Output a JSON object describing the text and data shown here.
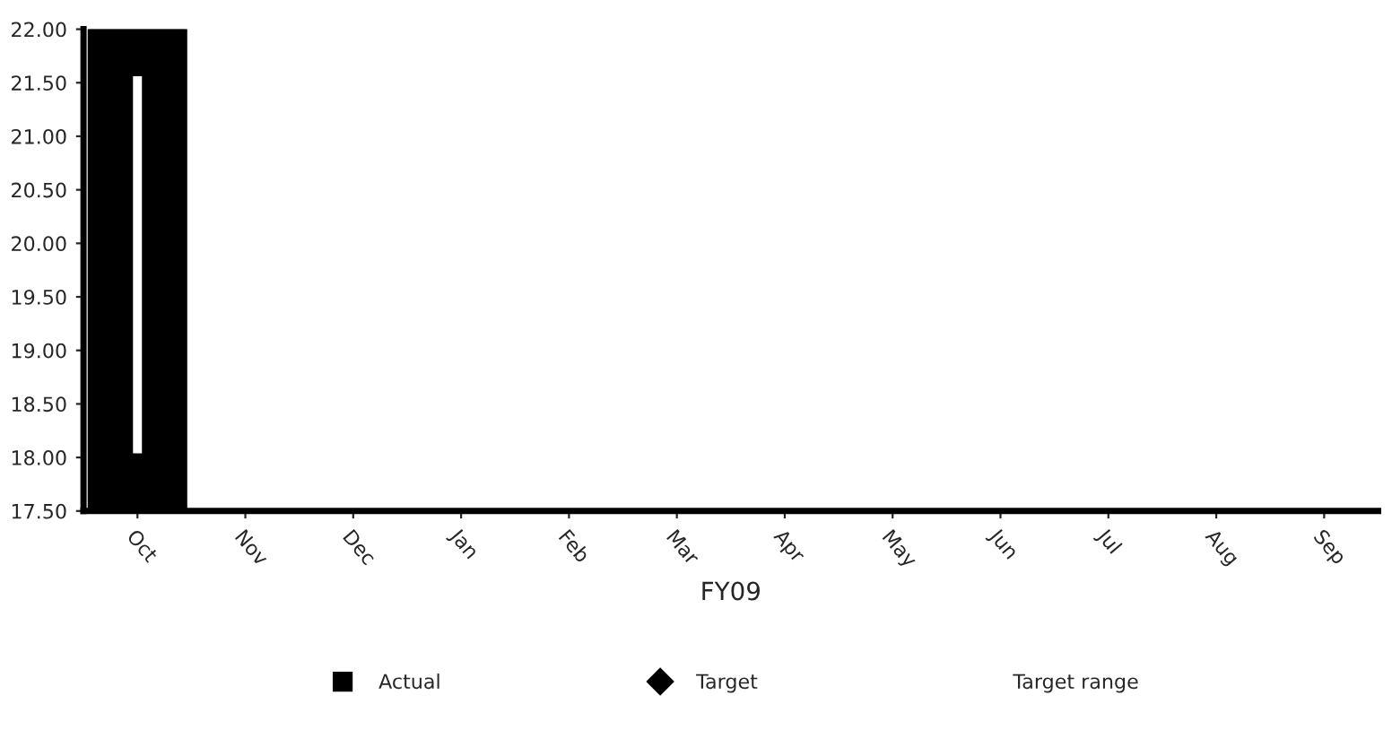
{
  "chart_data": {
    "type": "bar",
    "xlabel": "FY09",
    "categories": [
      "Oct",
      "Nov",
      "Dec",
      "Jan",
      "Feb",
      "Mar",
      "Apr",
      "May",
      "Jun",
      "Jul",
      "Aug",
      "Sep"
    ],
    "series": [
      {
        "name": "Actual",
        "color": "#000000",
        "values": [
          22.0,
          null,
          null,
          null,
          null,
          null,
          null,
          null,
          null,
          null,
          null,
          null
        ]
      },
      {
        "name": "Target",
        "type": "scatter",
        "color": "#000000",
        "marker": "diamond",
        "values": [
          null,
          null,
          null,
          null,
          null,
          null,
          null,
          null,
          null,
          null,
          null,
          null
        ]
      },
      {
        "name": "Target range",
        "type": "bar",
        "color": "#ffffff",
        "base": [
          18.05,
          null,
          null,
          null,
          null,
          null,
          null,
          null,
          null,
          null,
          null,
          null
        ],
        "values": [
          3.5,
          null,
          null,
          null,
          null,
          null,
          null,
          null,
          null,
          null,
          null,
          null
        ]
      }
    ],
    "ylim": [
      17.5,
      22.0
    ],
    "yticks": [
      {
        "value": 17.5,
        "label": "17.50"
      },
      {
        "value": 18.0,
        "label": "18.00"
      },
      {
        "value": 18.5,
        "label": "18.50"
      },
      {
        "value": 19.0,
        "label": "19.00"
      },
      {
        "value": 19.5,
        "label": "19.50"
      },
      {
        "value": 20.0,
        "label": "20.00"
      },
      {
        "value": 20.5,
        "label": "20.50"
      },
      {
        "value": 21.0,
        "label": "21.00"
      },
      {
        "value": 21.5,
        "label": "21.50"
      },
      {
        "value": 22.0,
        "label": "22.00"
      }
    ],
    "grid": false,
    "legend": "bottom"
  }
}
